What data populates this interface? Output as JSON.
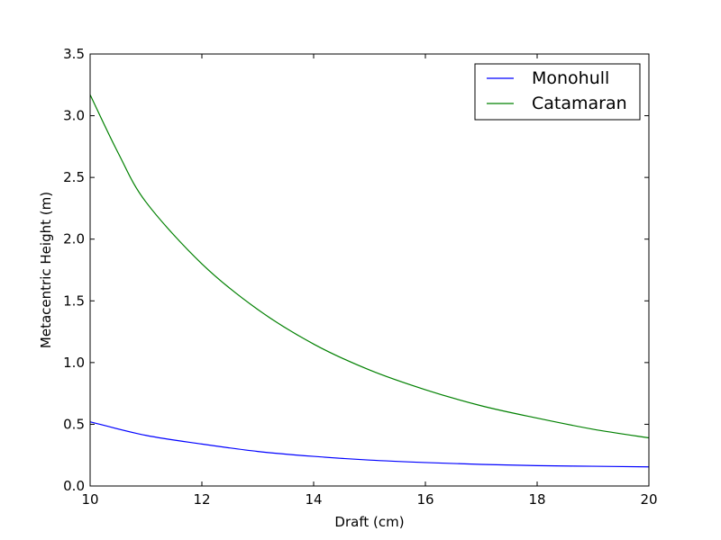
{
  "chart_data": {
    "type": "line",
    "xlabel": "Draft (cm)",
    "ylabel": "Metacentric Height (m)",
    "xlim": [
      10,
      20
    ],
    "ylim": [
      0,
      3.5
    ],
    "xticks": [
      "10",
      "12",
      "14",
      "16",
      "18",
      "20"
    ],
    "yticks": [
      "0.0",
      "0.5",
      "1.0",
      "1.5",
      "2.0",
      "2.5",
      "3.0",
      "3.5"
    ],
    "grid": false,
    "legend_position": "top-right",
    "series": [
      {
        "name": "Monohull",
        "color": "#0000ff",
        "x": [
          10,
          11,
          12,
          13,
          14,
          15,
          16,
          17,
          18,
          19,
          20
        ],
        "y": [
          0.52,
          0.41,
          0.34,
          0.28,
          0.24,
          0.21,
          0.19,
          0.175,
          0.165,
          0.16,
          0.155
        ]
      },
      {
        "name": "Catamaran",
        "color": "#008000",
        "x": [
          10,
          10.5,
          11,
          12,
          13,
          14,
          15,
          16,
          17,
          18,
          19,
          20
        ],
        "y": [
          3.17,
          2.7,
          2.3,
          1.8,
          1.43,
          1.15,
          0.94,
          0.78,
          0.65,
          0.55,
          0.46,
          0.39
        ]
      }
    ]
  }
}
